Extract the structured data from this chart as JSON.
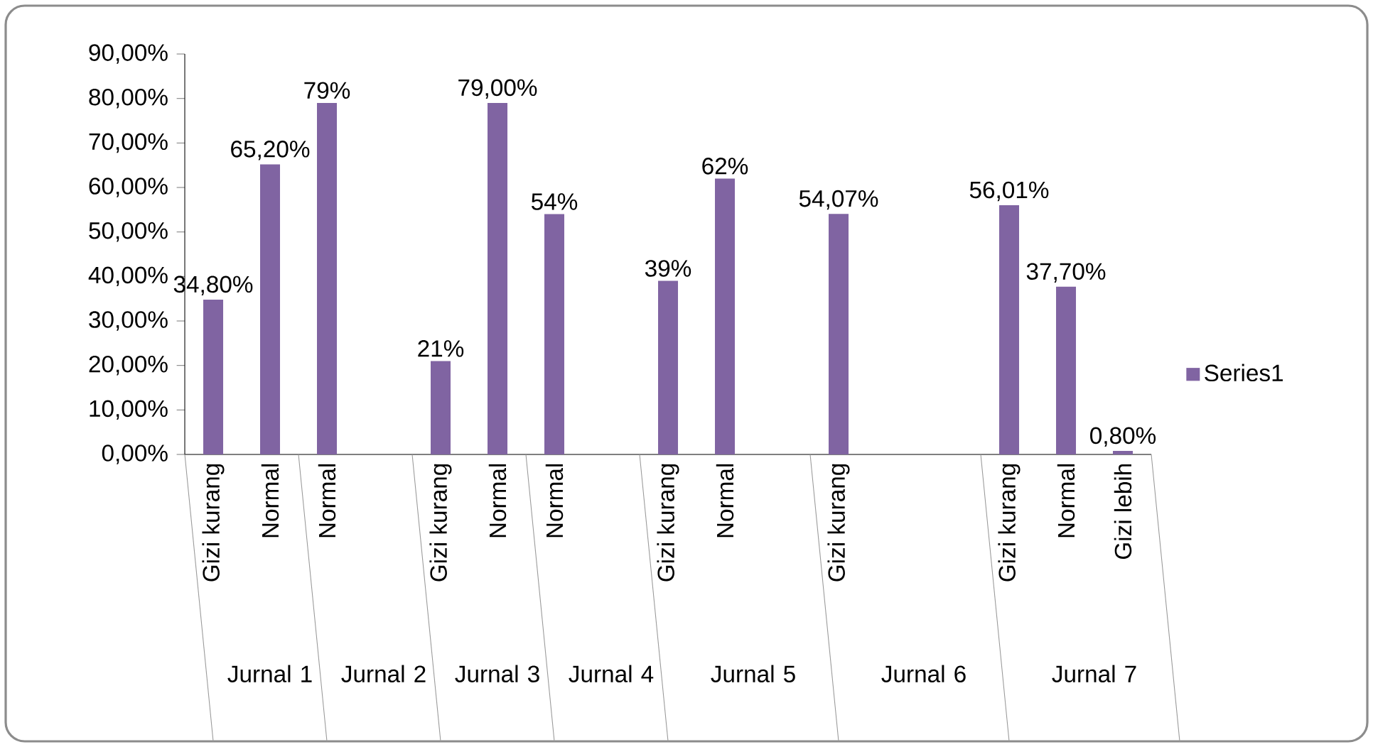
{
  "chart_data": {
    "type": "bar",
    "categories": [
      "Gizi kurang",
      "Normal",
      "Normal",
      null,
      "Gizi kurang",
      "Normal",
      "Normal",
      null,
      "Gizi kurang",
      "Normal",
      null,
      "Gizi kurang",
      null,
      null,
      "Gizi kurang",
      "Normal",
      "Gizi lebih"
    ],
    "series": [
      {
        "name": "Series1",
        "color": "#8064a2",
        "values": [
          34.8,
          65.2,
          79,
          null,
          21,
          79,
          54,
          null,
          39,
          62,
          null,
          54.07,
          null,
          null,
          56.01,
          37.7,
          0.8
        ],
        "value_labels": [
          "34,80%",
          "65,20%",
          "79%",
          null,
          "21%",
          "79,00%",
          "54%",
          null,
          "39%",
          "62%",
          null,
          "54,07%",
          null,
          null,
          "56,01%",
          "37,70%",
          "0,80%"
        ]
      }
    ],
    "annotations": [
      "Jurnal 1",
      "Jurnal 2",
      "Jurnal 3",
      "Jurnal 4",
      "Jurnal 5",
      "Jurnal 6",
      "Jurnal 7"
    ],
    "ylim": [
      0,
      90
    ],
    "yticks": [
      {
        "value": 0,
        "label": "0,00%"
      },
      {
        "value": 10,
        "label": "10,00%"
      },
      {
        "value": 20,
        "label": "20,00%"
      },
      {
        "value": 30,
        "label": "30,00%"
      },
      {
        "value": 40,
        "label": "40,00%"
      },
      {
        "value": 50,
        "label": "50,00%"
      },
      {
        "value": 60,
        "label": "60,00%"
      },
      {
        "value": 70,
        "label": "70,00%"
      },
      {
        "value": 80,
        "label": "80,00%"
      },
      {
        "value": 90,
        "label": "90,00%"
      }
    ],
    "grid": false,
    "legend": "right"
  }
}
